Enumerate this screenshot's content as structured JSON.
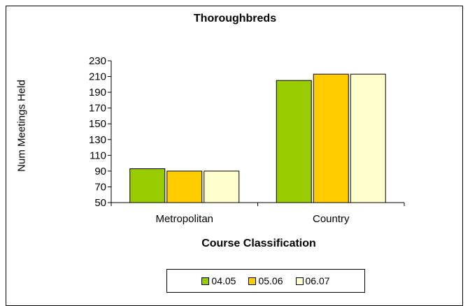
{
  "chart_data": {
    "type": "bar",
    "title": "Thoroughbreds",
    "xlabel": "Course Classification",
    "ylabel": "Num Meetings Held",
    "categories": [
      "Metropolitan",
      "Country"
    ],
    "series": [
      {
        "name": "04.05",
        "values": [
          93,
          205
        ],
        "color": "#99cc00"
      },
      {
        "name": "05.06",
        "values": [
          90,
          213
        ],
        "color": "#ffcc00"
      },
      {
        "name": "06.07",
        "values": [
          90,
          213
        ],
        "color": "#ffffcc"
      }
    ],
    "ylim": [
      50,
      230
    ],
    "yticks": [
      50,
      70,
      90,
      110,
      130,
      150,
      170,
      190,
      210,
      230
    ],
    "grid": false,
    "legend_position": "bottom"
  }
}
